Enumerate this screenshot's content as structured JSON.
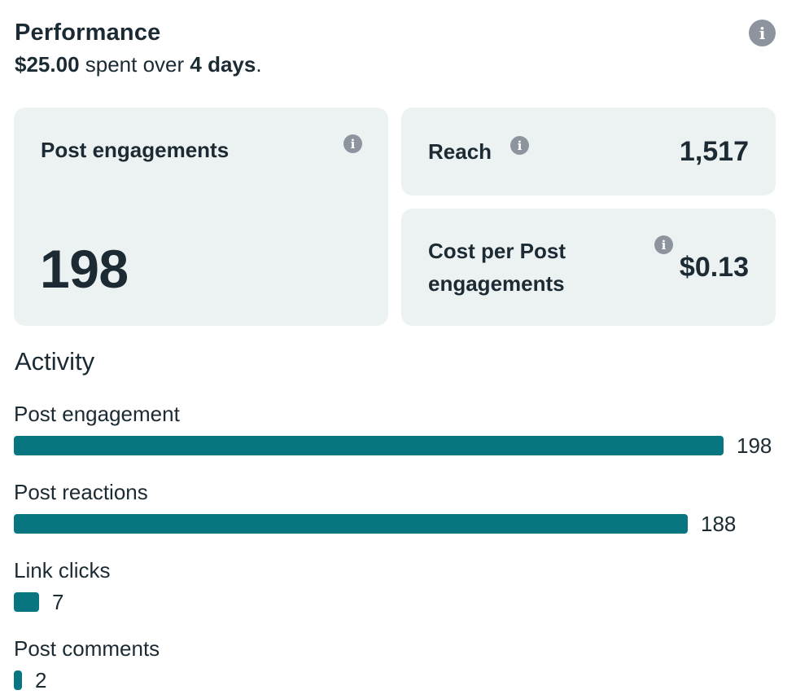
{
  "performance": {
    "title": "Performance",
    "spent": "$25.00",
    "spent_middle": " spent over ",
    "days": "4 days",
    "period": "."
  },
  "cards": {
    "post_engagements": {
      "label": "Post engagements",
      "value": "198"
    },
    "reach": {
      "label": "Reach",
      "value": "1,517"
    },
    "cost_per": {
      "label": "Cost per Post engagements",
      "value": "$0.13"
    }
  },
  "info_glyph": "i",
  "activity": {
    "title": "Activity",
    "items": [
      {
        "label": "Post engagement",
        "count": "198",
        "fraction": 1.0
      },
      {
        "label": "Post reactions",
        "count": "188",
        "fraction": 0.95
      },
      {
        "label": "Link clicks",
        "count": "7",
        "fraction": 0.035
      },
      {
        "label": "Post comments",
        "count": "2",
        "fraction": 0.011
      }
    ]
  },
  "colors": {
    "bar": "#077680",
    "card_bg": "#ecf1f2",
    "text": "#1c2b33",
    "info_icon": "#8d949e"
  }
}
